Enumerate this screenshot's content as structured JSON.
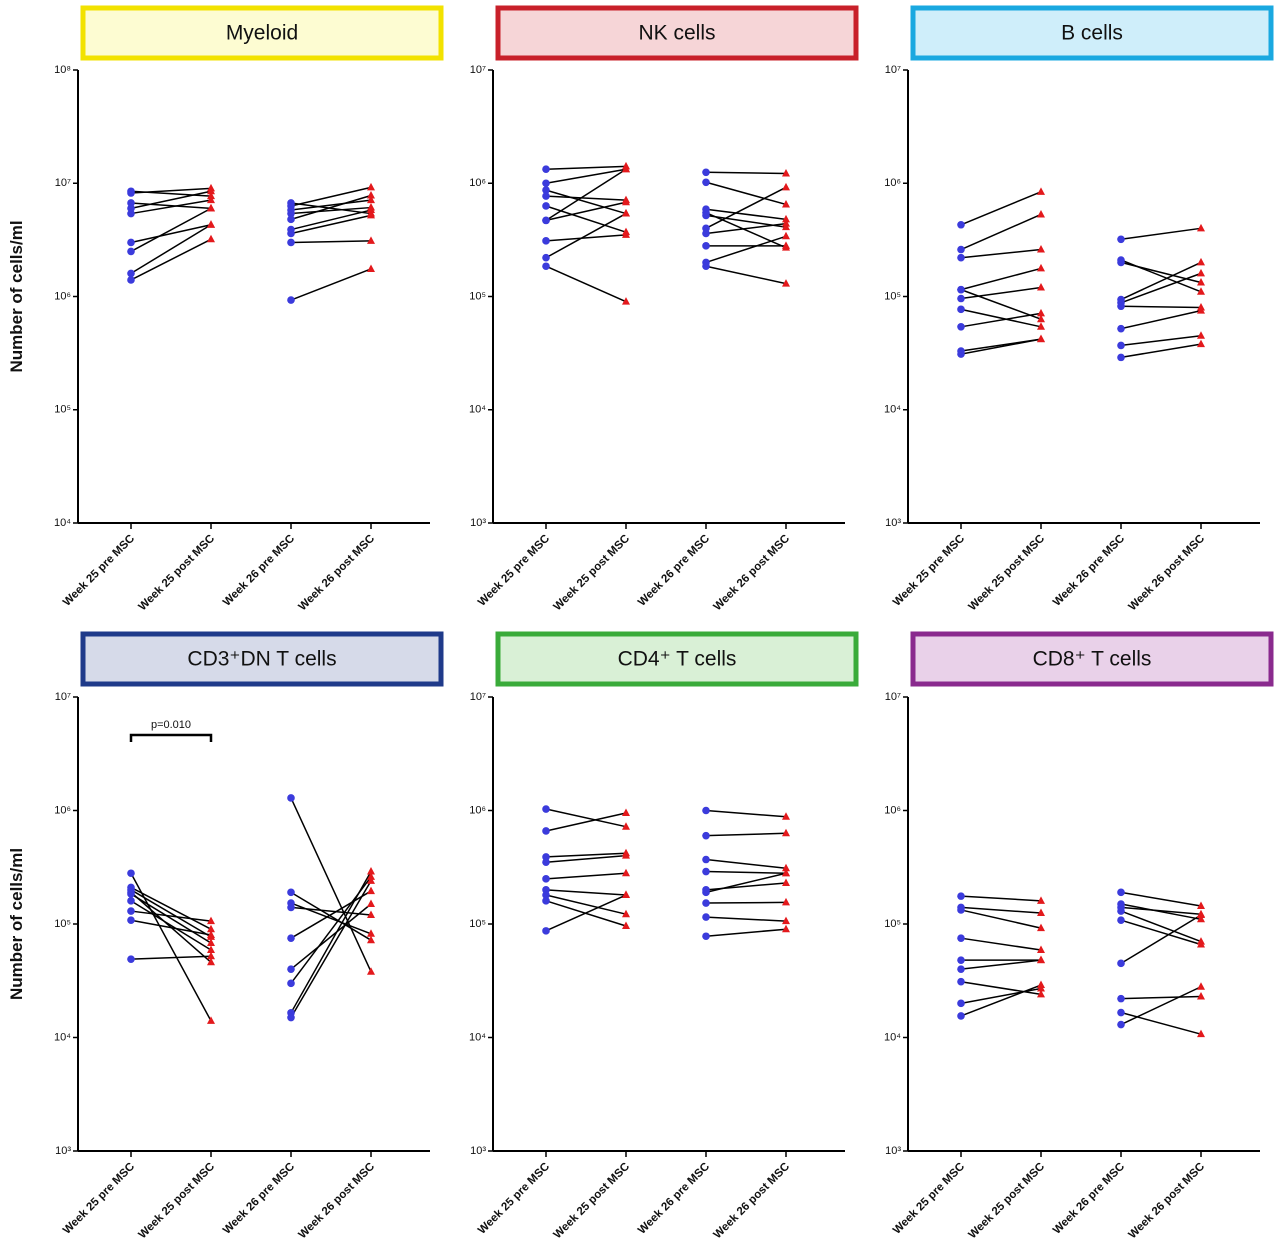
{
  "chart_data": [
    {
      "type": "paired",
      "title": "Myeloid",
      "ylabel": "Number of cells/ml",
      "border_color": "#f2e200",
      "fill_color": "#fdfcd2",
      "categories": [
        "Week 25 pre MSC",
        "Week 25 post MSC",
        "Week 26 pre MSC",
        "Week 26 post MSC"
      ],
      "values": [
        [
          8500000,
          8200000,
          6700000,
          6000000,
          5400000,
          3000000,
          2500000,
          1600000,
          1400000
        ],
        [
          7700000,
          9000000,
          6000000,
          8500000,
          7100000,
          4300000,
          6000000,
          4300000,
          3200000
        ],
        [
          6700000,
          6300000,
          5800000,
          5400000,
          4800000,
          3900000,
          3600000,
          3000000,
          930000
        ],
        [
          5400000,
          9200000,
          7100000,
          6100000,
          7800000,
          5800000,
          5200000,
          3100000,
          1750000
        ]
      ],
      "ylim": [
        10000,
        100000000
      ],
      "log_scale": true,
      "yticks": [
        {
          "value": 10000,
          "label": "10⁴"
        },
        {
          "value": 100000,
          "label": "10⁵"
        },
        {
          "value": 1000000,
          "label": "10⁶"
        },
        {
          "value": 10000000,
          "label": "10⁷"
        },
        {
          "value": 100000000,
          "label": "10⁸"
        }
      ],
      "point_colors": [
        "#3b3bdc",
        "#e3191c",
        "#3b3bdc",
        "#e3191c"
      ],
      "markers": [
        "circle",
        "triangle",
        "circle",
        "triangle"
      ],
      "line_color": "#000000"
    },
    {
      "type": "paired",
      "title": "NK cells",
      "border_color": "#c8202a",
      "fill_color": "#f6d5d7",
      "categories": [
        "Week 25 pre MSC",
        "Week 25 post MSC",
        "Week 26 pre MSC",
        "Week 26 post MSC"
      ],
      "values": [
        [
          1330000,
          1000000,
          870000,
          770000,
          630000,
          470000,
          470000,
          310000,
          220000,
          185000
        ],
        [
          1410000,
          1330000,
          540000,
          710000,
          370000,
          1330000,
          680000,
          350000,
          540000,
          90000
        ],
        [
          1250000,
          1020000,
          590000,
          550000,
          520000,
          400000,
          360000,
          280000,
          200000,
          185000
        ],
        [
          1220000,
          650000,
          480000,
          270000,
          410000,
          920000,
          440000,
          280000,
          340000,
          130000
        ]
      ],
      "ylim": [
        1000,
        10000000
      ],
      "log_scale": true,
      "yticks": [
        {
          "value": 1000,
          "label": "10³"
        },
        {
          "value": 10000,
          "label": "10⁴"
        },
        {
          "value": 100000,
          "label": "10⁵"
        },
        {
          "value": 1000000,
          "label": "10⁶"
        },
        {
          "value": 10000000,
          "label": "10⁷"
        }
      ],
      "point_colors": [
        "#3b3bdc",
        "#e3191c",
        "#3b3bdc",
        "#e3191c"
      ],
      "markers": [
        "circle",
        "triangle",
        "circle",
        "triangle"
      ],
      "line_color": "#000000"
    },
    {
      "type": "paired",
      "title": "B cells",
      "border_color": "#1aa8e0",
      "fill_color": "#cfeefa",
      "categories": [
        "Week 25 pre MSC",
        "Week 25 post MSC",
        "Week 26 pre MSC",
        "Week 26 post MSC"
      ],
      "values": [
        [
          430000,
          260000,
          220000,
          115000,
          115000,
          96000,
          77000,
          54000,
          33000,
          31000
        ],
        [
          840000,
          530000,
          260000,
          177000,
          63000,
          120000,
          54000,
          71000,
          42000,
          42000
        ],
        [
          320000,
          210000,
          200000,
          94000,
          88000,
          82000,
          52000,
          37000,
          29000
        ],
        [
          400000,
          110000,
          133000,
          200000,
          160000,
          80000,
          75000,
          45000,
          38000
        ]
      ],
      "ylim": [
        1000,
        10000000
      ],
      "log_scale": true,
      "yticks": [
        {
          "value": 1000,
          "label": "10³"
        },
        {
          "value": 10000,
          "label": "10⁴"
        },
        {
          "value": 100000,
          "label": "10⁵"
        },
        {
          "value": 1000000,
          "label": "10⁶"
        },
        {
          "value": 10000000,
          "label": "10⁷"
        }
      ],
      "point_colors": [
        "#3b3bdc",
        "#e3191c",
        "#3b3bdc",
        "#e3191c"
      ],
      "markers": [
        "circle",
        "triangle",
        "circle",
        "triangle"
      ],
      "line_color": "#000000"
    },
    {
      "type": "paired",
      "title": "CD3⁺DN T cells",
      "ylabel": "Number of cells/ml",
      "border_color": "#1f3a8a",
      "fill_color": "#d6dae9",
      "categories": [
        "Week 25 pre MSC",
        "Week 25 post MSC",
        "Week 26 pre MSC",
        "Week 26 post MSC"
      ],
      "values": [
        [
          280000,
          210000,
          200000,
          184000,
          160000,
          130000,
          108000,
          49000,
          190000
        ],
        [
          14000,
          90000,
          77000,
          68000,
          59000,
          106000,
          80000,
          52000,
          46000
        ],
        [
          1290000,
          190000,
          153000,
          140000,
          75000,
          40000,
          30000,
          16500,
          15000
        ],
        [
          38000,
          72000,
          82000,
          120000,
          195000,
          150000,
          260000,
          290000,
          240000
        ]
      ],
      "ylim": [
        1000,
        10000000
      ],
      "log_scale": true,
      "yticks": [
        {
          "value": 1000,
          "label": "10³"
        },
        {
          "value": 10000,
          "label": "10⁴"
        },
        {
          "value": 100000,
          "label": "10⁵"
        },
        {
          "value": 1000000,
          "label": "10⁶"
        },
        {
          "value": 10000000,
          "label": "10⁷"
        }
      ],
      "annotations": [
        {
          "text": "p=0.010",
          "between": [
            "Week 25 pre MSC",
            "Week 25 post MSC"
          ]
        }
      ],
      "point_colors": [
        "#3b3bdc",
        "#e3191c",
        "#3b3bdc",
        "#e3191c"
      ],
      "markers": [
        "circle",
        "triangle",
        "circle",
        "triangle"
      ],
      "line_color": "#000000"
    },
    {
      "type": "paired",
      "title": "CD4⁺ T cells",
      "border_color": "#3aab3a",
      "fill_color": "#d9f0d6",
      "categories": [
        "Week 25 pre MSC",
        "Week 25 post MSC",
        "Week 26 pre MSC",
        "Week 26 post MSC"
      ],
      "values": [
        [
          1030000,
          660000,
          390000,
          350000,
          250000,
          200000,
          180000,
          160000,
          87000
        ],
        [
          720000,
          950000,
          420000,
          400000,
          280000,
          180000,
          122000,
          96000,
          180000
        ],
        [
          1000000,
          600000,
          370000,
          290000,
          200000,
          190000,
          153000,
          115000,
          78000
        ],
        [
          880000,
          630000,
          310000,
          280000,
          230000,
          280000,
          155000,
          106000,
          90000
        ]
      ],
      "ylim": [
        1000,
        10000000
      ],
      "log_scale": true,
      "yticks": [
        {
          "value": 1000,
          "label": "10³"
        },
        {
          "value": 10000,
          "label": "10⁴"
        },
        {
          "value": 100000,
          "label": "10⁵"
        },
        {
          "value": 1000000,
          "label": "10⁶"
        },
        {
          "value": 10000000,
          "label": "10⁷"
        }
      ],
      "point_colors": [
        "#3b3bdc",
        "#e3191c",
        "#3b3bdc",
        "#e3191c"
      ],
      "markers": [
        "circle",
        "triangle",
        "circle",
        "triangle"
      ],
      "line_color": "#000000"
    },
    {
      "type": "paired",
      "title": "CD8⁺ T cells",
      "border_color": "#8a2a8e",
      "fill_color": "#e9d1e9",
      "categories": [
        "Week 25 pre MSC",
        "Week 25 post MSC",
        "Week 26 pre MSC",
        "Week 26 post MSC"
      ],
      "values": [
        [
          176000,
          133000,
          75000,
          48000,
          40000,
          31000,
          20000,
          15500,
          140000
        ],
        [
          160000,
          92000,
          59000,
          48000,
          48000,
          24000,
          27000,
          29000,
          125000
        ],
        [
          190000,
          150000,
          130000,
          108000,
          45000,
          22000,
          13000,
          16600,
          140000
        ],
        [
          144000,
          110000,
          70000,
          66000,
          120000,
          23000,
          28000,
          10700,
          122000
        ]
      ],
      "ylim": [
        1000,
        10000000
      ],
      "log_scale": true,
      "yticks": [
        {
          "value": 1000,
          "label": "10³"
        },
        {
          "value": 10000,
          "label": "10⁴"
        },
        {
          "value": 100000,
          "label": "10⁵"
        },
        {
          "value": 1000000,
          "label": "10⁶"
        },
        {
          "value": 10000000,
          "label": "10⁷"
        }
      ],
      "point_colors": [
        "#3b3bdc",
        "#e3191c",
        "#3b3bdc",
        "#e3191c"
      ],
      "markers": [
        "circle",
        "triangle",
        "circle",
        "triangle"
      ],
      "line_color": "#000000"
    }
  ]
}
